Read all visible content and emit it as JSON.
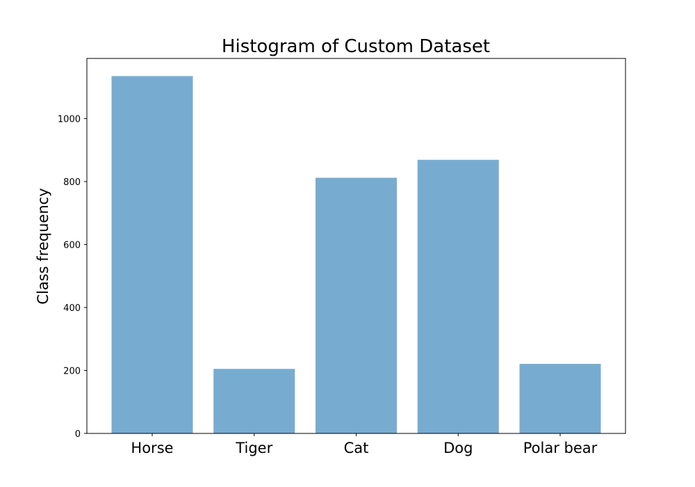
{
  "chart_data": {
    "type": "bar",
    "title": "Histogram of Custom Dataset",
    "xlabel": "",
    "ylabel": "Class frequency",
    "categories": [
      "Horse",
      "Tiger",
      "Cat",
      "Dog",
      "Polar bear"
    ],
    "values": [
      1135,
      205,
      812,
      869,
      221
    ],
    "ylim": [
      0,
      1191
    ],
    "yticks": [
      0,
      200,
      400,
      600,
      800,
      1000
    ],
    "ytick_labels": [
      "0",
      "200",
      "400",
      "600",
      "800",
      "1000"
    ],
    "grid": false,
    "legend": "none",
    "bar_color": "#77acd0"
  }
}
